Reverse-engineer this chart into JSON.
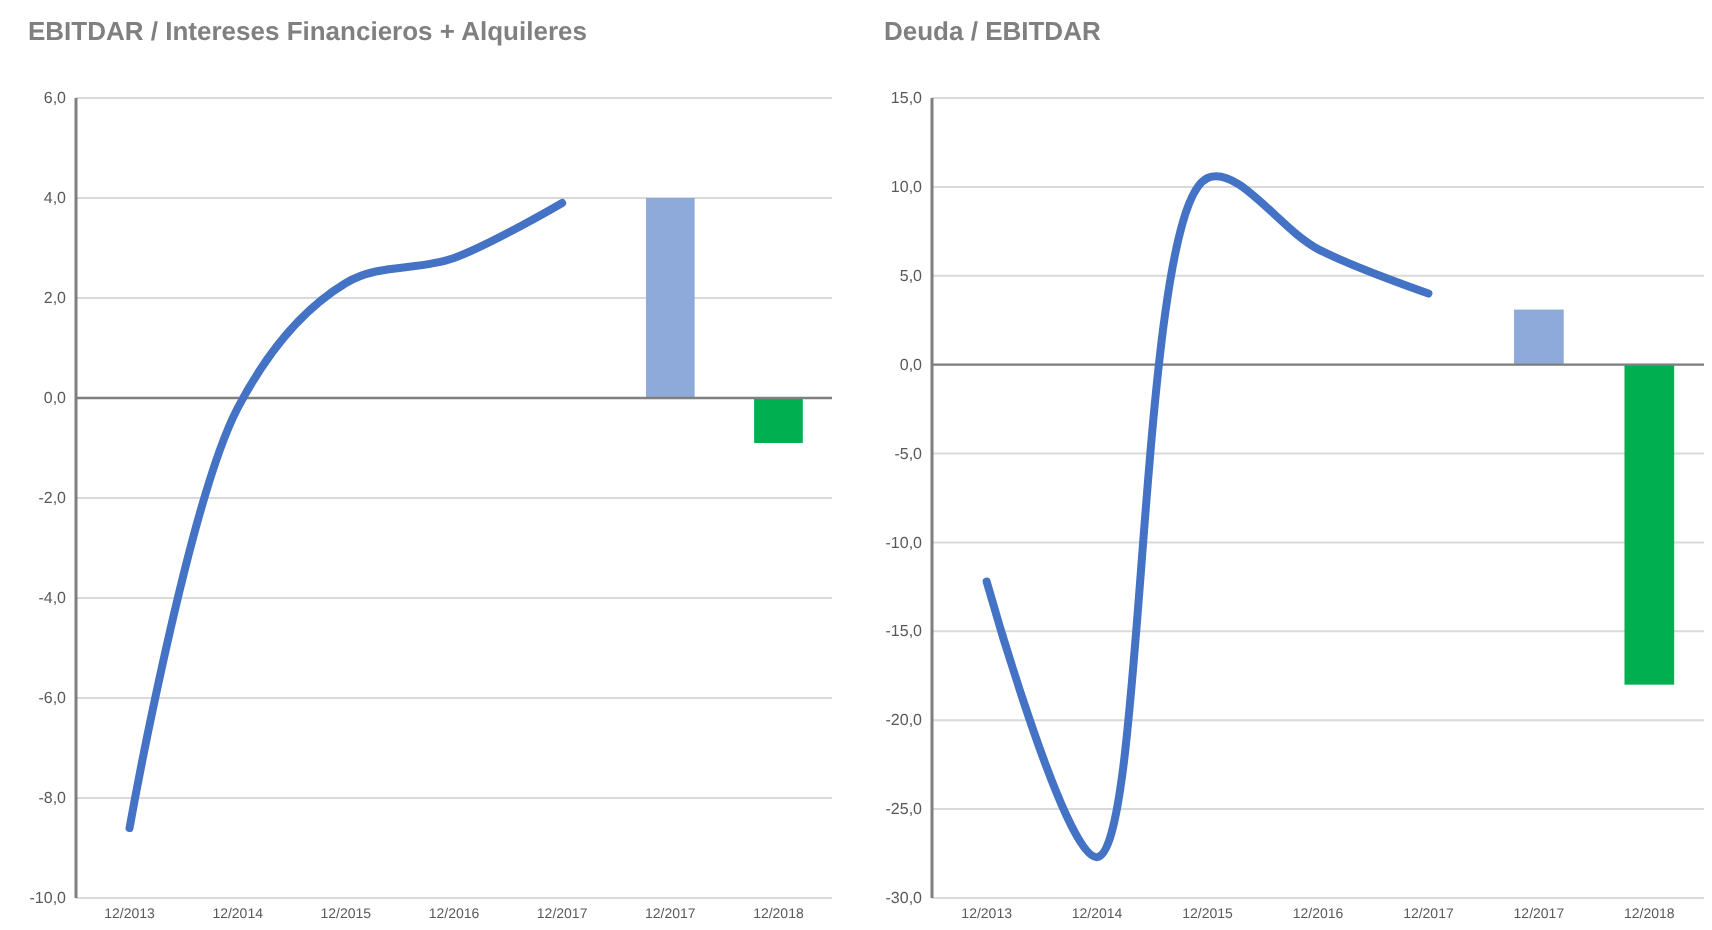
{
  "chart_data": [
    {
      "type": "line",
      "title": "EBITDAR / Intereses Financieros + Alquileres",
      "categories": [
        "12/2013",
        "12/2014",
        "12/2015",
        "12/2016",
        "12/2017",
        "12/2017",
        "12/2018"
      ],
      "series": [
        {
          "color": "#4472c4",
          "values": [
            -8.6,
            -0.2,
            2.3,
            2.8,
            3.9,
            null,
            null
          ]
        },
        {
          "type": "bar",
          "colors": [
            null,
            null,
            null,
            null,
            null,
            "#8eaadb",
            "#00b050"
          ],
          "values": [
            null,
            null,
            null,
            null,
            null,
            4.0,
            -0.9
          ]
        }
      ],
      "ylim": [
        -10,
        6
      ],
      "yticks": [
        {
          "value": -10,
          "label": "-10,0"
        },
        {
          "value": -8,
          "label": "-8,0"
        },
        {
          "value": -6,
          "label": "-6,0"
        },
        {
          "value": -4,
          "label": "-4,0"
        },
        {
          "value": -2,
          "label": "-2,0"
        },
        {
          "value": 0,
          "label": "0,0"
        },
        {
          "value": 2,
          "label": "2,0"
        },
        {
          "value": 4,
          "label": "4,0"
        },
        {
          "value": 6,
          "label": "6,0"
        }
      ],
      "grid": "y"
    },
    {
      "type": "line",
      "title": "Deuda / EBITDAR",
      "categories": [
        "12/2013",
        "12/2014",
        "12/2015",
        "12/2016",
        "12/2017",
        "12/2017",
        "12/2018"
      ],
      "series": [
        {
          "color": "#4472c4",
          "values": [
            -12.2,
            -27.7,
            10.5,
            6.5,
            4.0,
            null,
            null
          ]
        },
        {
          "type": "bar",
          "colors": [
            null,
            null,
            null,
            null,
            null,
            "#8eaadb",
            "#00b050"
          ],
          "values": [
            null,
            null,
            null,
            null,
            null,
            3.1,
            -18.0
          ]
        }
      ],
      "ylim": [
        -30,
        15
      ],
      "yticks": [
        {
          "value": -30,
          "label": "-30,0"
        },
        {
          "value": -25,
          "label": "-25,0"
        },
        {
          "value": -20,
          "label": "-20,0"
        },
        {
          "value": -15,
          "label": "-15,0"
        },
        {
          "value": -10,
          "label": "-10,0"
        },
        {
          "value": -5,
          "label": "-5,0"
        },
        {
          "value": 0,
          "label": "0,0"
        },
        {
          "value": 5,
          "label": "5,0"
        },
        {
          "value": 10,
          "label": "10,0"
        },
        {
          "value": 15,
          "label": "15,0"
        }
      ],
      "grid": "y"
    }
  ]
}
